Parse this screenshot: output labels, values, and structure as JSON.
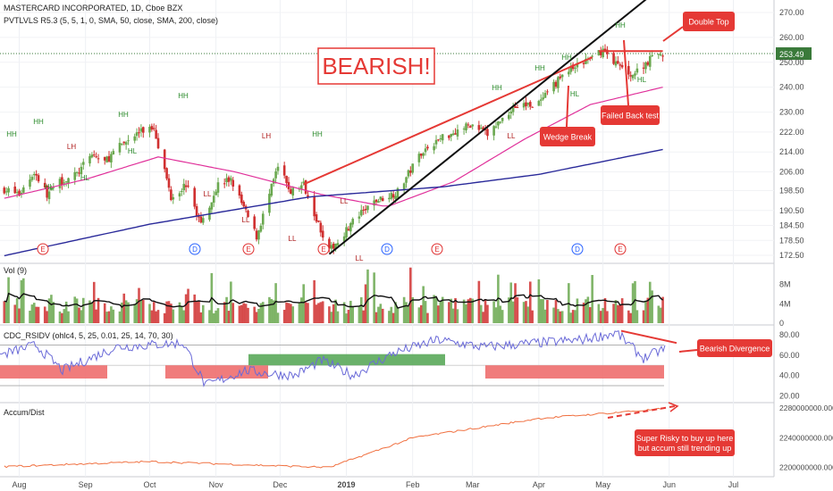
{
  "header": {
    "title": "MASTERCARD INCORPORATED, 1D, Cboe BZX",
    "study": "PVTLVLS R5.3 (5, 5, 1, 0, SMA, 50, close, SMA, 200, close)"
  },
  "price_axis": {
    "ticks": [
      "270.00",
      "260.00",
      "253.49",
      "250.00",
      "240.00",
      "230.00",
      "222.00",
      "214.00",
      "206.00",
      "198.50",
      "190.50",
      "184.50",
      "178.50",
      "172.50"
    ],
    "last_price": "253.49"
  },
  "time_axis": {
    "labels": [
      "Aug",
      "Sep",
      "Oct",
      "Nov",
      "Dec",
      "2019",
      "Feb",
      "Mar",
      "Apr",
      "May",
      "Jun",
      "Jul"
    ]
  },
  "annotations": {
    "bearish": "BEARISH!",
    "double_top": "Double Top",
    "wedge_break": "Wedge Break",
    "failed_back_test": "Failed Back test",
    "bearish_divergence": "Bearish Divergence",
    "super_risky_line1": "Super Risky to buy up here",
    "super_risky_line2": "but accum still trending up"
  },
  "pivot_labels": [
    {
      "text": "HH",
      "x": 13
    },
    {
      "text": "HH",
      "x": 43
    },
    {
      "text": "HL",
      "x": 55
    },
    {
      "text": "LH",
      "x": 80
    },
    {
      "text": "HL",
      "x": 95
    },
    {
      "text": "HH",
      "x": 138
    },
    {
      "text": "HL",
      "x": 148
    },
    {
      "text": "HH",
      "x": 205
    },
    {
      "text": "LL",
      "x": 232
    },
    {
      "text": "LL",
      "x": 275
    },
    {
      "text": "LH",
      "x": 298
    },
    {
      "text": "LL",
      "x": 327
    },
    {
      "text": "HH",
      "x": 355
    },
    {
      "text": "LL",
      "x": 385
    },
    {
      "text": "LL",
      "x": 402
    },
    {
      "text": "HH",
      "x": 556
    },
    {
      "text": "LL",
      "x": 572
    },
    {
      "text": "HH",
      "x": 604
    },
    {
      "text": "HH",
      "x": 634
    },
    {
      "text": "HL",
      "x": 643
    },
    {
      "text": "HH",
      "x": 694
    },
    {
      "text": "HL",
      "x": 718
    }
  ],
  "event_markers": [
    {
      "letter": "E",
      "x": 48,
      "color": "#e03030"
    },
    {
      "letter": "D",
      "x": 218,
      "color": "#2962ff"
    },
    {
      "letter": "E",
      "x": 278,
      "color": "#e03030"
    },
    {
      "letter": "E",
      "x": 362,
      "color": "#e03030"
    },
    {
      "letter": "D",
      "x": 433,
      "color": "#2962ff"
    },
    {
      "letter": "E",
      "x": 489,
      "color": "#e03030"
    },
    {
      "letter": "D",
      "x": 646,
      "color": "#2962ff"
    },
    {
      "letter": "E",
      "x": 694,
      "color": "#e03030"
    }
  ],
  "volume_panel": {
    "title": "Vol (9)",
    "ticks": [
      "8M",
      "4M",
      "0"
    ]
  },
  "rsi_panel": {
    "title": "CDC_RSIDV (ohlc4, 5, 25, 0.01, 25, 14, 70, 30)",
    "ticks": [
      "80.00",
      "60.00",
      "40.00",
      "20.00"
    ]
  },
  "accum_panel": {
    "title": "Accum/Dist",
    "ticks": [
      "2280000000.000",
      "2240000000.000",
      "2200000000.000"
    ]
  },
  "colors": {
    "up": "#6aa84f",
    "down": "#d03030",
    "sma50": "#e0309a",
    "sma200": "#2a2a9a",
    "annotation_red": "#e53935",
    "rsi_line": "#6a6ad8",
    "accum_line": "#f07040"
  },
  "chart_data": {
    "type": "candlestick",
    "title": "MASTERCARD INCORPORATED, 1D, Cboe BZX",
    "x_range": [
      "2018-07-23",
      "2019-07-20"
    ],
    "ylim": [
      170,
      275
    ],
    "price_anchors": [
      {
        "date": "2018-07-25",
        "close": 199
      },
      {
        "date": "2018-08-01",
        "close": 197
      },
      {
        "date": "2018-08-08",
        "close": 206
      },
      {
        "date": "2018-08-14",
        "close": 197
      },
      {
        "date": "2018-08-20",
        "close": 202
      },
      {
        "date": "2018-08-28",
        "close": 205
      },
      {
        "date": "2018-09-04",
        "close": 213
      },
      {
        "date": "2018-09-10",
        "close": 210
      },
      {
        "date": "2018-09-18",
        "close": 217
      },
      {
        "date": "2018-09-26",
        "close": 222
      },
      {
        "date": "2018-10-03",
        "close": 224
      },
      {
        "date": "2018-10-11",
        "close": 196
      },
      {
        "date": "2018-10-18",
        "close": 201
      },
      {
        "date": "2018-10-25",
        "close": 185
      },
      {
        "date": "2018-11-02",
        "close": 201
      },
      {
        "date": "2018-11-08",
        "close": 203
      },
      {
        "date": "2018-11-20",
        "close": 180
      },
      {
        "date": "2018-11-30",
        "close": 208
      },
      {
        "date": "2018-12-06",
        "close": 198
      },
      {
        "date": "2018-12-12",
        "close": 201
      },
      {
        "date": "2018-12-24",
        "close": 174
      },
      {
        "date": "2019-01-04",
        "close": 186
      },
      {
        "date": "2019-01-14",
        "close": 194
      },
      {
        "date": "2019-01-25",
        "close": 198
      },
      {
        "date": "2019-02-05",
        "close": 214
      },
      {
        "date": "2019-02-15",
        "close": 220
      },
      {
        "date": "2019-02-28",
        "close": 225
      },
      {
        "date": "2019-03-08",
        "close": 221
      },
      {
        "date": "2019-03-20",
        "close": 232
      },
      {
        "date": "2019-04-02",
        "close": 234
      },
      {
        "date": "2019-04-12",
        "close": 245
      },
      {
        "date": "2019-04-26",
        "close": 252
      },
      {
        "date": "2019-05-01",
        "close": 255
      },
      {
        "date": "2019-05-09",
        "close": 248
      },
      {
        "date": "2019-05-15",
        "close": 245
      },
      {
        "date": "2019-05-24",
        "close": 252
      },
      {
        "date": "2019-05-29",
        "close": 253.5
      }
    ],
    "sma50_anchors": [
      {
        "date": "2018-07-23",
        "value": 195
      },
      {
        "date": "2018-09-01",
        "value": 203
      },
      {
        "date": "2018-10-05",
        "value": 212
      },
      {
        "date": "2018-11-10",
        "value": 206
      },
      {
        "date": "2018-12-20",
        "value": 197
      },
      {
        "date": "2019-01-20",
        "value": 192
      },
      {
        "date": "2019-02-20",
        "value": 202
      },
      {
        "date": "2019-03-25",
        "value": 219
      },
      {
        "date": "2019-04-25",
        "value": 233
      },
      {
        "date": "2019-05-29",
        "value": 240
      }
    ],
    "sma200_anchors": [
      {
        "date": "2018-07-23",
        "value": 172
      },
      {
        "date": "2018-10-01",
        "value": 185
      },
      {
        "date": "2018-12-15",
        "value": 196
      },
      {
        "date": "2019-02-15",
        "value": 200
      },
      {
        "date": "2019-04-01",
        "value": 205
      },
      {
        "date": "2019-05-29",
        "value": 215
      }
    ],
    "trend_lines": [
      {
        "name": "wedge-upper",
        "from": {
          "date": "2018-12-12",
          "value": 201
        },
        "to": {
          "date": "2019-04-26",
          "value": 252
        }
      },
      {
        "name": "wedge-lower",
        "from": {
          "date": "2018-12-24",
          "value": 173
        },
        "to": {
          "date": "2019-05-28",
          "value": 280
        }
      },
      {
        "name": "double-top-level",
        "from": {
          "date": "2019-04-29",
          "value": 254.5
        },
        "to": {
          "date": "2019-05-29",
          "value": 254.5
        }
      }
    ],
    "volume_ylim": [
      0,
      12
    ],
    "volume_unit": "M",
    "rsi_ylim": [
      15,
      88
    ],
    "rsi_levels": [
      70,
      30
    ],
    "accum_ylim": [
      2190000000,
      2285000000
    ],
    "accum_anchors": [
      {
        "date": "2018-07-23",
        "value": 2201000000
      },
      {
        "date": "2018-10-01",
        "value": 2208000000
      },
      {
        "date": "2018-12-24",
        "value": 2200000000
      },
      {
        "date": "2019-02-01",
        "value": 2240000000
      },
      {
        "date": "2019-04-01",
        "value": 2266000000
      },
      {
        "date": "2019-05-29",
        "value": 2279000000
      }
    ]
  }
}
